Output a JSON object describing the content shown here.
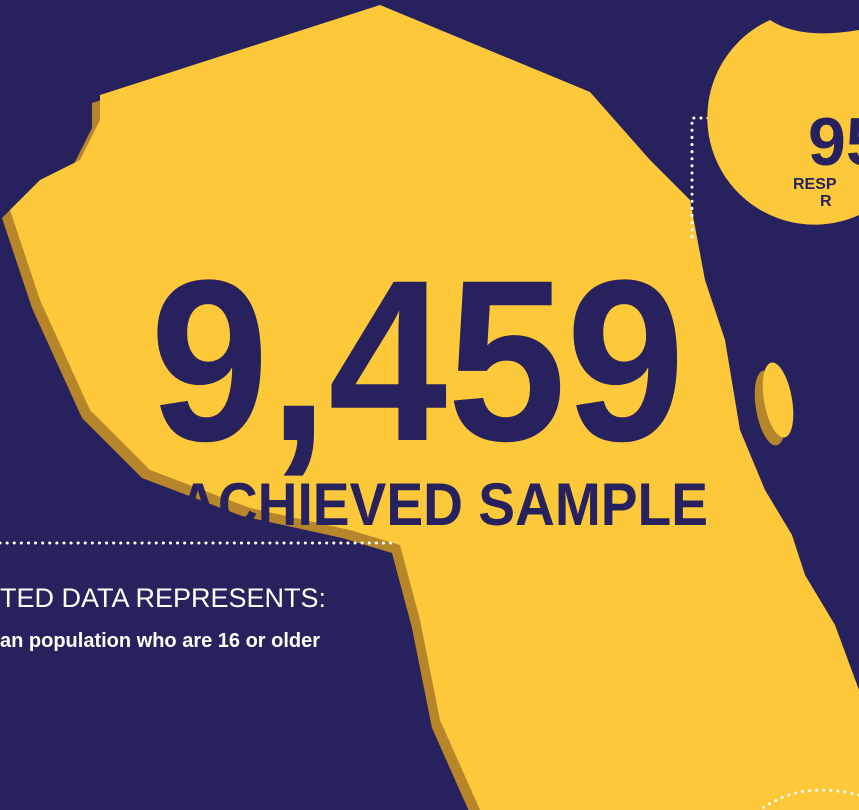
{
  "headline": {
    "value": "9,459",
    "label": "ACHIEVED SAMPLE"
  },
  "callout": {
    "value": "95",
    "line1": "RESP",
    "line2": "R"
  },
  "note": {
    "title": "TED DATA REPRESENTS:",
    "text": "an population who are 16 or older"
  }
}
